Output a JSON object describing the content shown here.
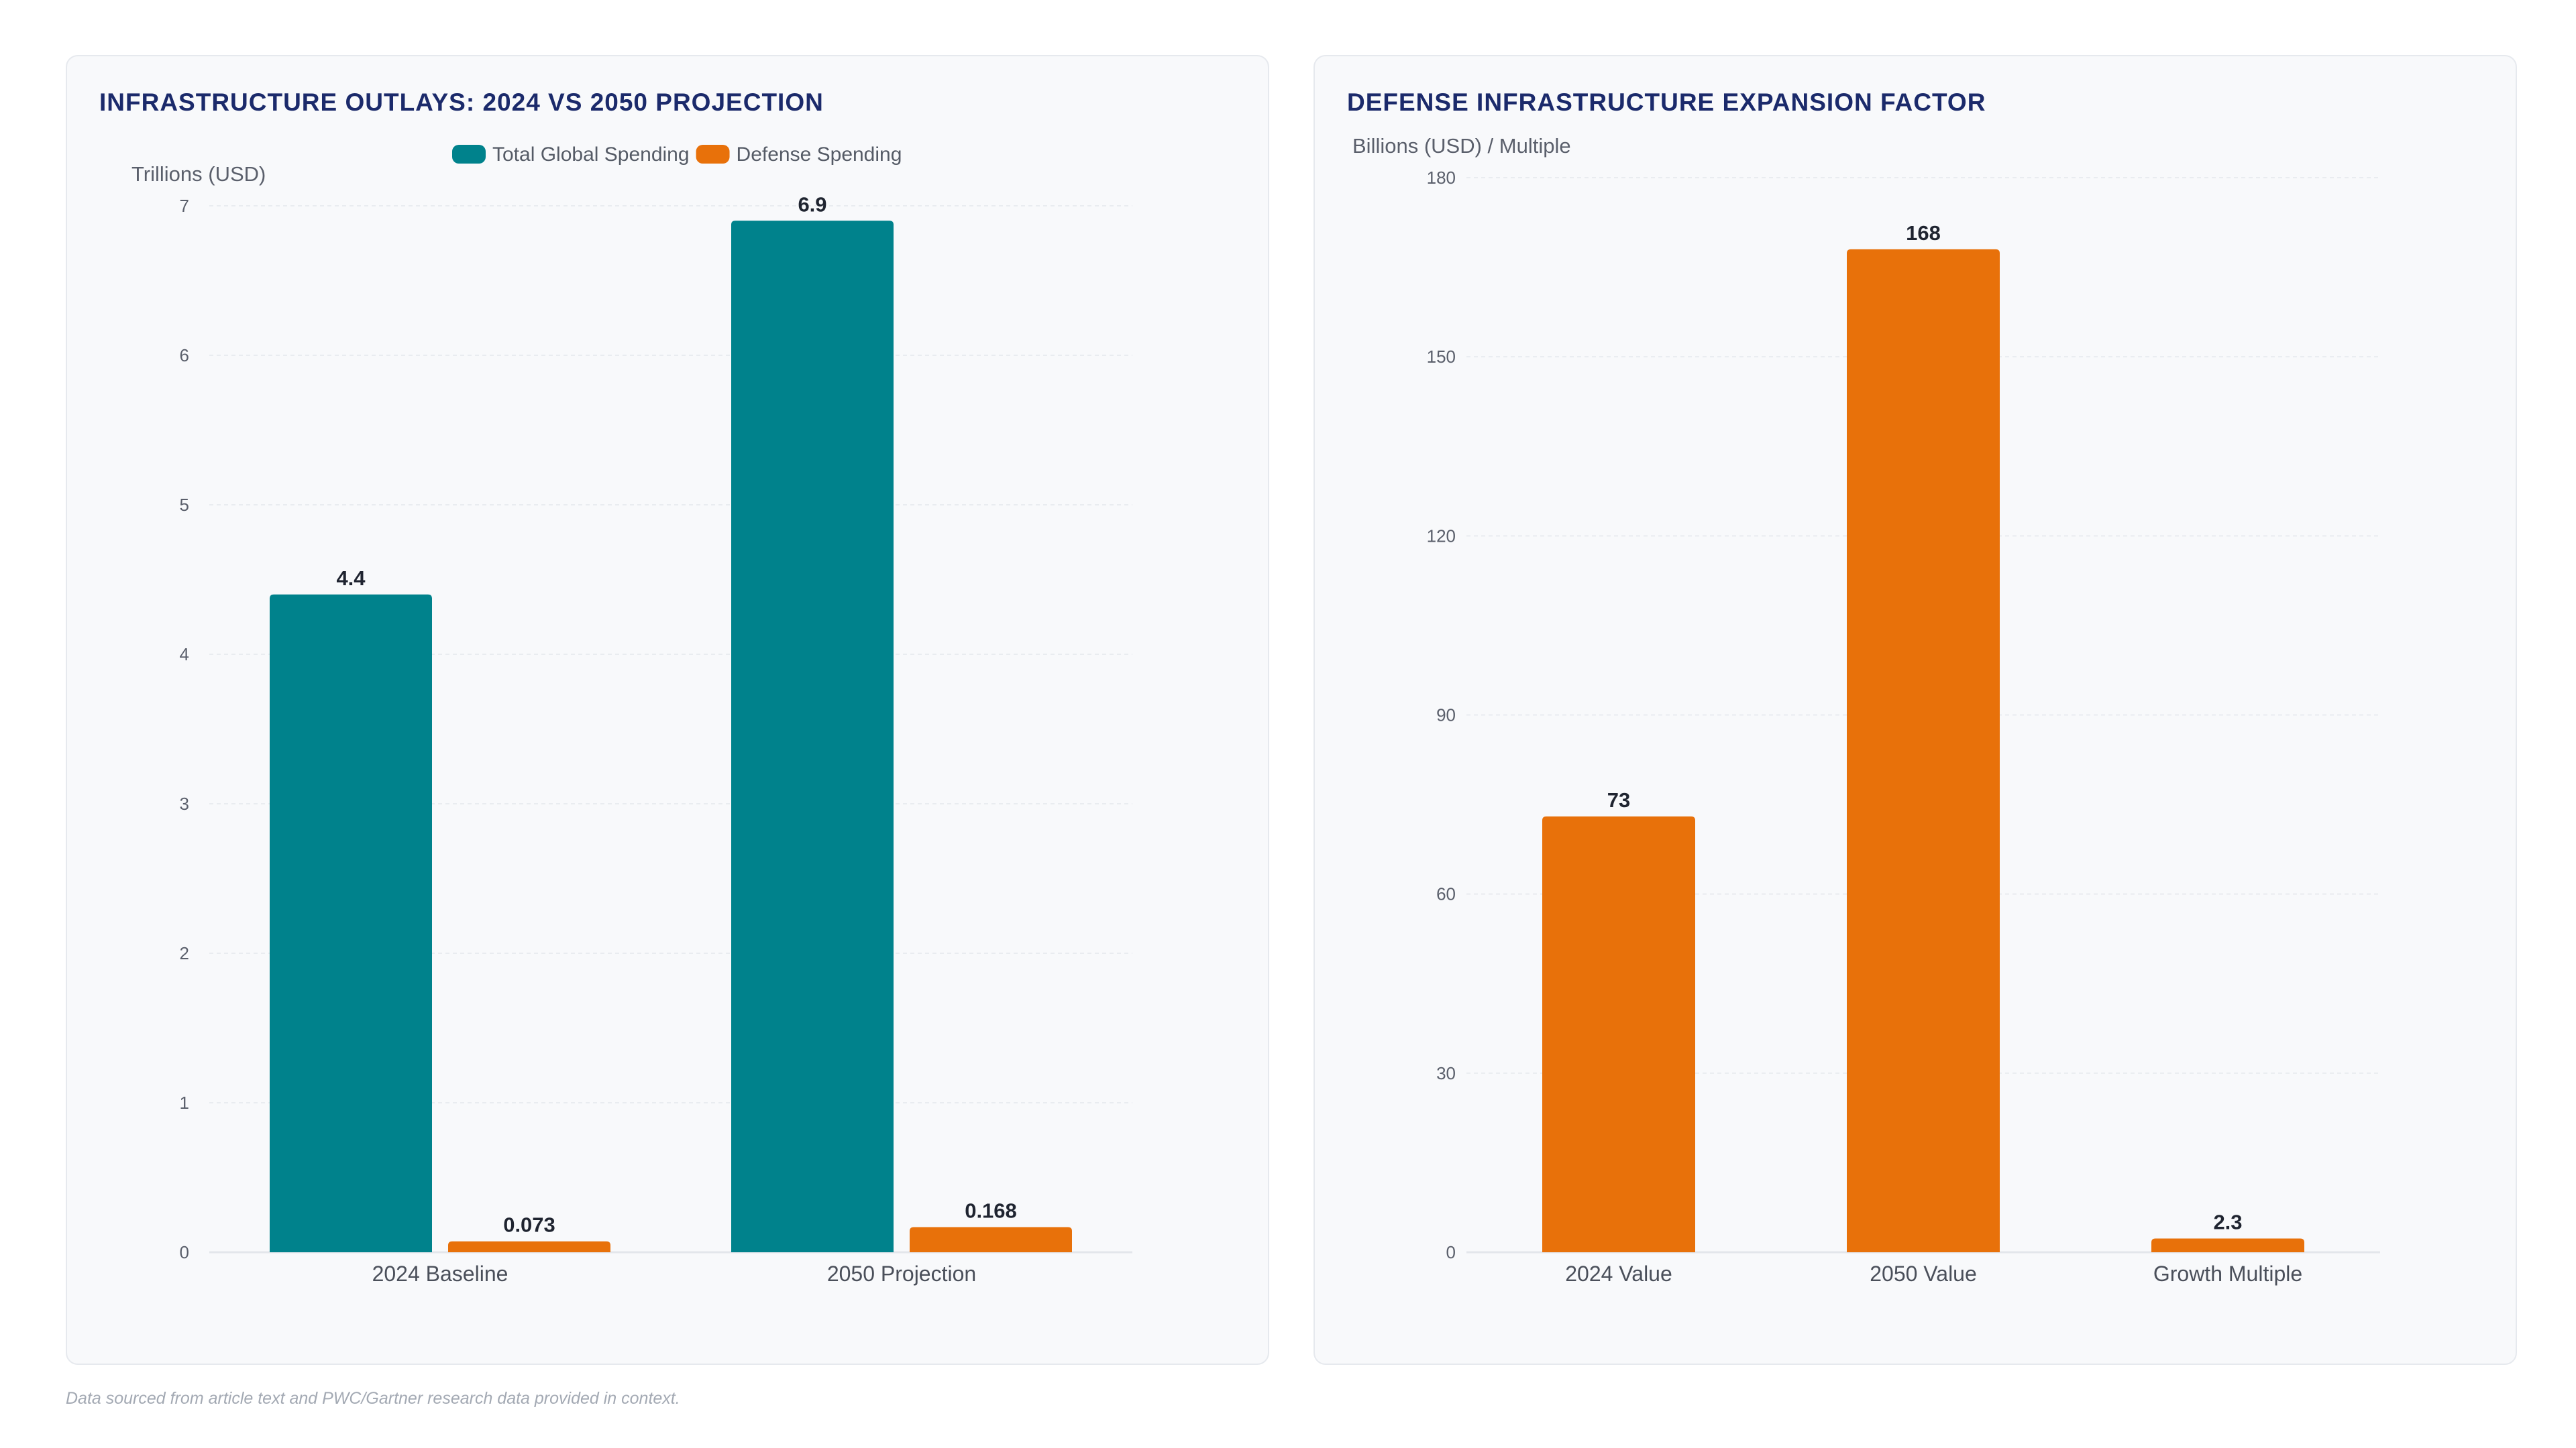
{
  "footnote": "Data sourced from article text and PWC/Gartner research data provided in context.",
  "colors": {
    "teal": "#00828c",
    "orange": "#e8710a",
    "title": "#1b2a6b",
    "grid": "#e9ecf0",
    "tick": "#5a5f6b",
    "data_label": "#1f2430"
  },
  "chart_data": [
    {
      "type": "bar",
      "title": "INFRASTRUCTURE OUTLAYS: 2024 VS 2050 PROJECTION",
      "ylabel": "Trillions (USD)",
      "xlabel": "",
      "categories": [
        "2024 Baseline",
        "2050 Projection"
      ],
      "series": [
        {
          "name": "Total Global Spending",
          "color": "#00828c",
          "values": [
            4.4,
            6.9
          ],
          "labels": [
            "4.4",
            "6.9"
          ]
        },
        {
          "name": "Defense Spending",
          "color": "#e8710a",
          "values": [
            0.073,
            0.168
          ],
          "labels": [
            "0.073",
            "0.168"
          ]
        }
      ],
      "ylim": [
        0,
        7
      ],
      "yticks": [
        0,
        1,
        2,
        3,
        4,
        5,
        6,
        7
      ],
      "grid": true,
      "legend": "top-center"
    },
    {
      "type": "bar",
      "title": "DEFENSE INFRASTRUCTURE EXPANSION FACTOR",
      "ylabel": "Billions (USD) / Multiple",
      "xlabel": "",
      "categories": [
        "2024 Value",
        "2050 Value",
        "Growth Multiple"
      ],
      "series": [
        {
          "color": "#e8710a",
          "values": [
            73,
            168,
            2.3
          ],
          "labels": [
            "73",
            "168",
            "2.3"
          ]
        }
      ],
      "ylim": [
        0,
        180
      ],
      "yticks": [
        0,
        30,
        60,
        90,
        120,
        150,
        180
      ],
      "grid": true,
      "legend": "none"
    }
  ]
}
